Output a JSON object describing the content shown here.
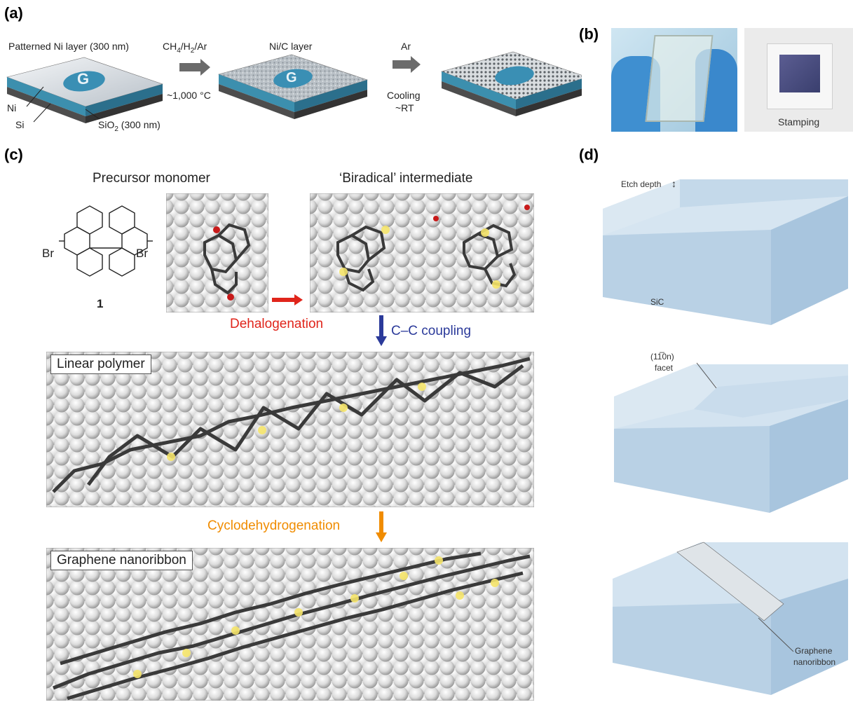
{
  "panels": {
    "a": "(a)",
    "b": "(b)",
    "c": "(c)",
    "d": "(d)"
  },
  "panel_a": {
    "title": "Patterned Ni layer (300 nm)",
    "ni": "Ni",
    "si": "Si",
    "sio2": "SiO",
    "sio2_sub": "2",
    "sio2_rest": " (300 nm)",
    "arrow1_top": "CH4/H2/Ar",
    "arrow1_bottom": "~1,000 °C",
    "mid_title": "Ni/C layer",
    "arrow2_top": "Ar",
    "arrow2_mid": "Cooling",
    "arrow2_bottom": "~RT",
    "logo_letter": "G"
  },
  "panel_b": {
    "stamping": "Stamping"
  },
  "panel_c": {
    "precursor": "Precursor monomer",
    "intermediate": "‘Biradical’ intermediate",
    "br_left": "Br",
    "br_right": "Br",
    "compound_number": "1",
    "dehalogenation": "Dehalogenation",
    "coupling": "C–C coupling",
    "linear_polymer": "Linear polymer",
    "cyclodehydrogenation": "Cyclodehydrogenation",
    "nanoribbon": "Graphene nanoribbon"
  },
  "panel_d": {
    "etch_depth": "Etch depth",
    "sic": "SiC",
    "facet_top": "(11̅0n)",
    "facet_bottom": "facet",
    "gnr_line1": "Graphene",
    "gnr_line2": "nanoribbon"
  },
  "colors": {
    "dehalogenation": "#e0251b",
    "coupling": "#2b3a9a",
    "cyclodehydrogenation": "#f08c00",
    "sic_block": "#c9dcec"
  }
}
